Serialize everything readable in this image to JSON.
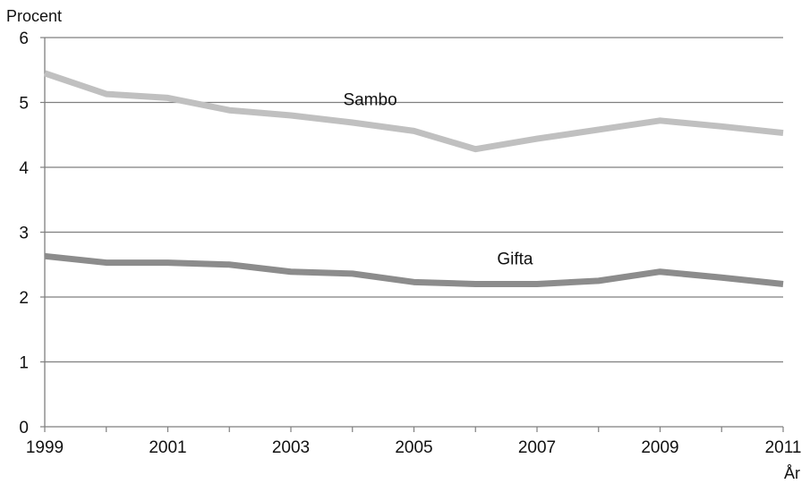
{
  "chart_data": {
    "type": "line",
    "ylabel": "Procent",
    "xlabel": "År",
    "ylim": [
      0,
      6
    ],
    "xlim": [
      1999,
      2011
    ],
    "y_ticks": [
      "0",
      "1",
      "2",
      "3",
      "4",
      "5",
      "6"
    ],
    "x_ticks": [
      "1999",
      "2001",
      "2003",
      "2005",
      "2007",
      "2009",
      "2011"
    ],
    "grid": "horizontal",
    "x": [
      1999,
      2000,
      2001,
      2002,
      2003,
      2004,
      2005,
      2006,
      2007,
      2008,
      2009,
      2010,
      2011
    ],
    "series": [
      {
        "name": "Sambo",
        "color": "#c0c0c0",
        "values": [
          5.45,
          5.13,
          5.07,
          4.88,
          4.8,
          4.69,
          4.56,
          4.28,
          4.44,
          4.58,
          4.72,
          4.63,
          4.53
        ]
      },
      {
        "name": "Gifta",
        "color": "#8c8c8c",
        "values": [
          2.63,
          2.53,
          2.53,
          2.5,
          2.39,
          2.36,
          2.23,
          2.2,
          2.2,
          2.25,
          2.39,
          2.3,
          2.2
        ]
      }
    ]
  }
}
